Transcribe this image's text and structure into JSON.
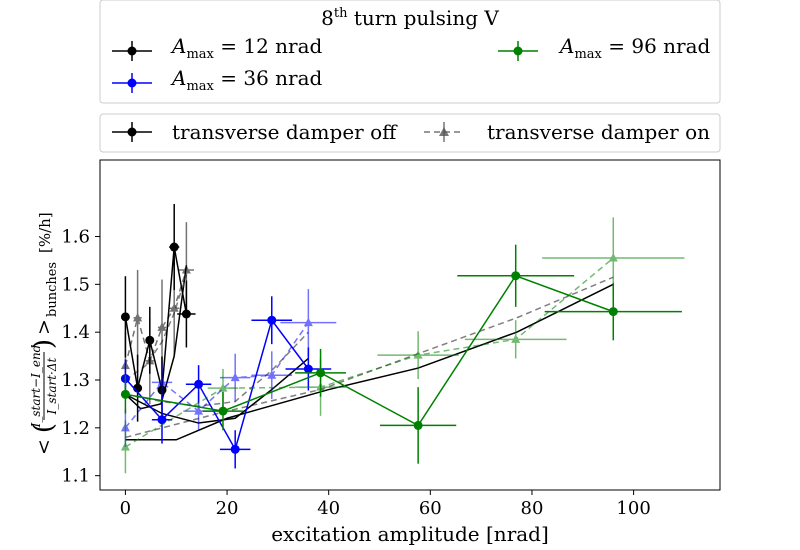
{
  "chart_data": {
    "type": "scatter",
    "title": "",
    "xlabel": "excitation amplitude [nrad]",
    "ylabel": "< (I_start − I_end) / (I_start·Δt) >_bunches  [%/h]",
    "ylabel_parts": {
      "lt": "<",
      "paren_open": "(",
      "num": "I_start−I_end",
      "den": "I_start·Δt",
      "paren_close": ")",
      "gt": ">",
      "sub": "bunches",
      "unit": "[%/h]"
    },
    "xlim": [
      -5,
      117
    ],
    "ylim": [
      1.07,
      1.76
    ],
    "xticks": [
      0,
      20,
      40,
      60,
      80,
      100
    ],
    "yticks": [
      1.1,
      1.2,
      1.3,
      1.4,
      1.5,
      1.6
    ],
    "grid": false,
    "legend_top": {
      "title_pre": "8",
      "title_sup": "th",
      "title_post": " turn pulsing V",
      "entries": [
        {
          "label": "A_max = 12 nrad",
          "sym": "A",
          "sub": "max",
          "rest": " = 12 nrad",
          "color": "#000000"
        },
        {
          "label": "A_max = 36 nrad",
          "sym": "A",
          "sub": "max",
          "rest": " = 36 nrad",
          "color": "#0000ff"
        },
        {
          "label": "A_max = 96 nrad",
          "sym": "A",
          "sub": "max",
          "rest": " = 96 nrad",
          "color": "#008000"
        }
      ]
    },
    "legend_bottom": {
      "entries": [
        {
          "label": "transverse damper off",
          "style": "solid-circle"
        },
        {
          "label": "transverse damper on",
          "style": "dashed-triangle"
        }
      ]
    },
    "series": [
      {
        "group": "12 nrad",
        "damper": "off",
        "color": "#000000",
        "points": [
          {
            "x": 0,
            "y": 1.432,
            "xerr": 0.5,
            "yerr": 0.085
          },
          {
            "x": 2.4,
            "y": 1.283,
            "xerr": 0.8,
            "yerr": 0.07
          },
          {
            "x": 4.8,
            "y": 1.383,
            "xerr": 0.8,
            "yerr": 0.07
          },
          {
            "x": 7.2,
            "y": 1.279,
            "xerr": 0.8,
            "yerr": 0.07
          },
          {
            "x": 9.6,
            "y": 1.578,
            "xerr": 1.0,
            "yerr": 0.09
          },
          {
            "x": 12.0,
            "y": 1.438,
            "xerr": 1.8,
            "yerr": 0.07
          }
        ]
      },
      {
        "group": "12 nrad",
        "damper": "on",
        "color": "#000000",
        "points": [
          {
            "x": 0,
            "y": 1.33,
            "xerr": 0.5,
            "yerr": 0.07
          },
          {
            "x": 2.4,
            "y": 1.43,
            "xerr": 0.8,
            "yerr": 0.1
          },
          {
            "x": 4.8,
            "y": 1.34,
            "xerr": 0.8,
            "yerr": 0.09
          },
          {
            "x": 7.2,
            "y": 1.41,
            "xerr": 0.8,
            "yerr": 0.1
          },
          {
            "x": 9.6,
            "y": 1.45,
            "xerr": 1.0,
            "yerr": 0.1
          },
          {
            "x": 12.0,
            "y": 1.53,
            "xerr": 1.5,
            "yerr": 0.1
          }
        ]
      },
      {
        "group": "36 nrad",
        "damper": "off",
        "color": "#0000ff",
        "points": [
          {
            "x": 0,
            "y": 1.303,
            "xerr": 0.5,
            "yerr": 0.04
          },
          {
            "x": 7.2,
            "y": 1.217,
            "xerr": 2.0,
            "yerr": 0.05
          },
          {
            "x": 14.4,
            "y": 1.291,
            "xerr": 2.5,
            "yerr": 0.04
          },
          {
            "x": 21.6,
            "y": 1.155,
            "xerr": 3.0,
            "yerr": 0.04
          },
          {
            "x": 28.8,
            "y": 1.425,
            "xerr": 4.0,
            "yerr": 0.05
          },
          {
            "x": 36.0,
            "y": 1.323,
            "xerr": 4.5,
            "yerr": 0.045
          }
        ]
      },
      {
        "group": "36 nrad",
        "damper": "on",
        "color": "#0000ff",
        "points": [
          {
            "x": 0,
            "y": 1.2,
            "xerr": 0.5,
            "yerr": 0.04
          },
          {
            "x": 7.2,
            "y": 1.295,
            "xerr": 2.0,
            "yerr": 0.04
          },
          {
            "x": 14.4,
            "y": 1.235,
            "xerr": 3.0,
            "yerr": 0.04
          },
          {
            "x": 21.6,
            "y": 1.305,
            "xerr": 3.0,
            "yerr": 0.05
          },
          {
            "x": 28.8,
            "y": 1.31,
            "xerr": 4.0,
            "yerr": 0.05
          },
          {
            "x": 36.0,
            "y": 1.42,
            "xerr": 5.5,
            "yerr": 0.07
          }
        ]
      },
      {
        "group": "96 nrad",
        "damper": "off",
        "color": "#008000",
        "points": [
          {
            "x": 0,
            "y": 1.27,
            "xerr": 0.5,
            "yerr": 0.04
          },
          {
            "x": 19.2,
            "y": 1.235,
            "xerr": 4.0,
            "yerr": 0.04
          },
          {
            "x": 38.4,
            "y": 1.315,
            "xerr": 5.0,
            "yerr": 0.05
          },
          {
            "x": 57.6,
            "y": 1.205,
            "xerr": 7.5,
            "yerr": 0.08
          },
          {
            "x": 76.8,
            "y": 1.518,
            "xerr": 11.5,
            "yerr": 0.065
          },
          {
            "x": 96.0,
            "y": 1.443,
            "xerr": 13.5,
            "yerr": 0.06
          }
        ]
      },
      {
        "group": "96 nrad",
        "damper": "on",
        "color": "#008000",
        "points": [
          {
            "x": 0,
            "y": 1.16,
            "xerr": 0.5,
            "yerr": 0.055
          },
          {
            "x": 19.2,
            "y": 1.283,
            "xerr": 3.0,
            "yerr": 0.04
          },
          {
            "x": 38.4,
            "y": 1.285,
            "xerr": 5.0,
            "yerr": 0.06
          },
          {
            "x": 57.6,
            "y": 1.352,
            "xerr": 8.0,
            "yerr": 0.05
          },
          {
            "x": 76.8,
            "y": 1.385,
            "xerr": 10.0,
            "yerr": 0.04
          },
          {
            "x": 96.0,
            "y": 1.555,
            "xerr": 14.0,
            "yerr": 0.085
          }
        ]
      },
      {
        "group": "fit",
        "damper": "off",
        "color": "#000000",
        "points": [
          {
            "x": 0,
            "y": 1.175
          },
          {
            "x": 10,
            "y": 1.175
          },
          {
            "x": 20,
            "y": 1.22
          },
          {
            "x": 40,
            "y": 1.28
          },
          {
            "x": 57.6,
            "y": 1.325
          },
          {
            "x": 77,
            "y": 1.4
          },
          {
            "x": 96,
            "y": 1.5
          }
        ]
      },
      {
        "group": "fit",
        "damper": "on",
        "color": "#555555",
        "points": [
          {
            "x": 0,
            "y": 1.18
          },
          {
            "x": 20,
            "y": 1.235
          },
          {
            "x": 38.4,
            "y": 1.28
          },
          {
            "x": 57.6,
            "y": 1.355
          },
          {
            "x": 77,
            "y": 1.43
          },
          {
            "x": 96,
            "y": 1.515
          }
        ]
      },
      {
        "group": "fit-12",
        "damper": "off",
        "color": "#000000",
        "points": [
          {
            "x": 0,
            "y": 1.27
          },
          {
            "x": 3,
            "y": 1.24
          },
          {
            "x": 7,
            "y": 1.25
          },
          {
            "x": 9.6,
            "y": 1.35
          },
          {
            "x": 12,
            "y": 1.54
          }
        ]
      },
      {
        "group": "fit-36",
        "damper": "off",
        "color": "#000000",
        "points": [
          {
            "x": 0,
            "y": 1.27
          },
          {
            "x": 7.2,
            "y": 1.23
          },
          {
            "x": 14.4,
            "y": 1.21
          },
          {
            "x": 21.6,
            "y": 1.22
          },
          {
            "x": 28.8,
            "y": 1.28
          },
          {
            "x": 36,
            "y": 1.345
          }
        ]
      },
      {
        "group": "fit-36",
        "damper": "on",
        "color": "#555555",
        "points": [
          {
            "x": 0,
            "y": 1.27
          },
          {
            "x": 7.2,
            "y": 1.255
          },
          {
            "x": 14.4,
            "y": 1.245
          },
          {
            "x": 21.6,
            "y": 1.255
          },
          {
            "x": 28.8,
            "y": 1.32
          },
          {
            "x": 36,
            "y": 1.4
          }
        ]
      },
      {
        "group": "fit-12",
        "damper": "on",
        "color": "#555555",
        "points": [
          {
            "x": 0,
            "y": 1.3
          },
          {
            "x": 4,
            "y": 1.33
          },
          {
            "x": 7.2,
            "y": 1.38
          },
          {
            "x": 9.6,
            "y": 1.44
          },
          {
            "x": 12,
            "y": 1.52
          }
        ]
      }
    ]
  }
}
